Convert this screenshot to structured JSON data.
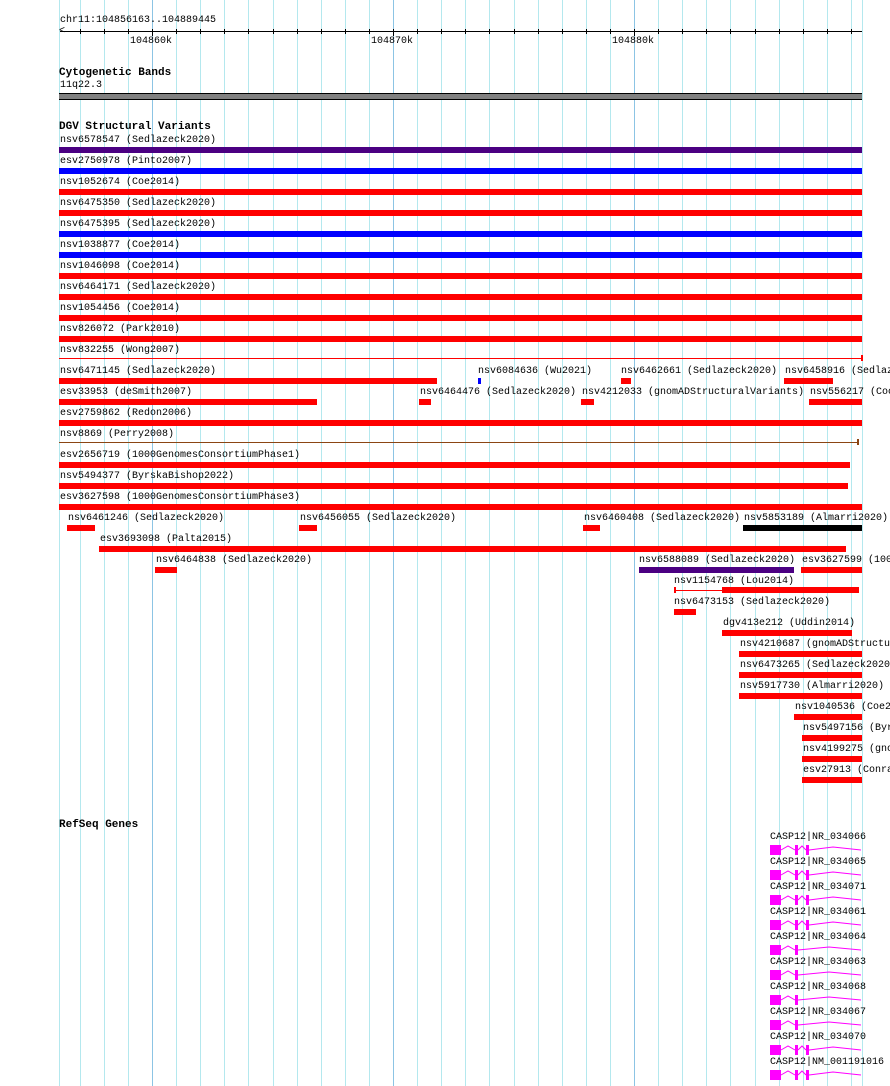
{
  "ruler": {
    "region": "chr11:104856163..104889445",
    "ticks": [
      "104860k",
      "104870k",
      "104880k"
    ]
  },
  "cytoband": {
    "title": "Cytogenetic Bands",
    "band": "11q22.3",
    "color": "#808080"
  },
  "dgv": {
    "title": "DGV Structural Variants",
    "features": [
      {
        "label": "nsv6578547 (Sedlazeck2020)",
        "color": "#4b0082"
      },
      {
        "label": "esv2750978 (Pinto2007)",
        "color": "#0000ff"
      },
      {
        "label": "nsv1052674 (Coe2014)",
        "color": "#ff0000"
      },
      {
        "label": "nsv6475350 (Sedlazeck2020)",
        "color": "#ff0000"
      },
      {
        "label": "nsv6475395 (Sedlazeck2020)",
        "color": "#0000ff"
      },
      {
        "label": "nsv1038877 (Coe2014)",
        "color": "#0000ff"
      },
      {
        "label": "nsv1046098 (Coe2014)",
        "color": "#ff0000"
      },
      {
        "label": "nsv6464171 (Sedlazeck2020)",
        "color": "#ff0000"
      },
      {
        "label": "nsv1054456 (Coe2014)",
        "color": "#ff0000"
      },
      {
        "label": "nsv826072 (Park2010)",
        "color": "#ff0000"
      },
      {
        "label": "nsv832255 (Wong2007)",
        "color": "#ff0000"
      },
      {
        "label": "nsv6471145 (Sedlazeck2020)",
        "color": "#ff0000"
      },
      {
        "label": "nsv6084636 (Wu2021)",
        "color": "#0000ff"
      },
      {
        "label": "nsv6462661 (Sedlazeck2020)",
        "color": "#ff0000"
      },
      {
        "label": "nsv6458916 (Sedlaz",
        "color": "#ff0000"
      },
      {
        "label": "esv33953 (deSmith2007)",
        "color": "#ff0000"
      },
      {
        "label": "nsv6464476 (Sedlazeck2020)",
        "color": "#ff0000"
      },
      {
        "label": "nsv4212033 (gnomADStructuralVariants)",
        "color": "#ff0000"
      },
      {
        "label": "nsv556217 (Coo",
        "color": "#ff0000"
      },
      {
        "label": "esv2759862 (Redon2006)",
        "color": "#ff0000"
      },
      {
        "label": "nsv8869 (Perry2008)",
        "color": "#8b4513"
      },
      {
        "label": "esv2656719 (1000GenomesConsortiumPhase1)",
        "color": "#ff0000"
      },
      {
        "label": "nsv5494377 (ByrskaBishop2022)",
        "color": "#ff0000"
      },
      {
        "label": "esv3627598 (1000GenomesConsortiumPhase3)",
        "color": "#ff0000"
      },
      {
        "label": "nsv6461246 (Sedlazeck2020)",
        "color": "#ff0000"
      },
      {
        "label": "nsv6456055 (Sedlazeck2020)",
        "color": "#ff0000"
      },
      {
        "label": "nsv6460408 (Sedlazeck2020)",
        "color": "#ff0000"
      },
      {
        "label": "nsv5853189 (Almarri2020)",
        "color": "#000000"
      },
      {
        "label": "esv3693098 (Palta2015)",
        "color": "#ff0000"
      },
      {
        "label": "nsv6464838 (Sedlazeck2020)",
        "color": "#ff0000"
      },
      {
        "label": "nsv6588089 (Sedlazeck2020)",
        "color": "#4b0082"
      },
      {
        "label": "esv3627599 (100",
        "color": "#ff0000"
      },
      {
        "label": "nsv1154768 (Lou2014)",
        "color": "#ff0000"
      },
      {
        "label": "nsv6473153 (Sedlazeck2020)",
        "color": "#ff0000"
      },
      {
        "label": "dgv413e212 (Uddin2014)",
        "color": "#ff0000"
      },
      {
        "label": "nsv4210687 (gnomADStructur",
        "color": "#ff0000"
      },
      {
        "label": "nsv6473265 (Sedlazeck2020",
        "color": "#ff0000"
      },
      {
        "label": "nsv5917730 (Almarri2020)",
        "color": "#ff0000"
      },
      {
        "label": "nsv1040536 (Coe2",
        "color": "#ff0000"
      },
      {
        "label": "nsv5497156 (Byr",
        "color": "#ff0000"
      },
      {
        "label": "nsv4199275 (gno",
        "color": "#ff0000"
      },
      {
        "label": "esv27913 (Conra",
        "color": "#ff0000"
      }
    ]
  },
  "refseq": {
    "title": "RefSeq Genes",
    "color": "#ff00ff",
    "genes": [
      {
        "label": "CASP12|NR_034066",
        "exons": 3
      },
      {
        "label": "CASP12|NR_034065",
        "exons": 3
      },
      {
        "label": "CASP12|NR_034071",
        "exons": 3
      },
      {
        "label": "CASP12|NR_034061",
        "exons": 3
      },
      {
        "label": "CASP12|NR_034064",
        "exons": 2
      },
      {
        "label": "CASP12|NR_034063",
        "exons": 2
      },
      {
        "label": "CASP12|NR_034068",
        "exons": 2
      },
      {
        "label": "CASP12|NR_034067",
        "exons": 2
      },
      {
        "label": "CASP12|NR_034070",
        "exons": 3
      },
      {
        "label": "CASP12|NM_001191016",
        "exons": 3
      }
    ]
  }
}
